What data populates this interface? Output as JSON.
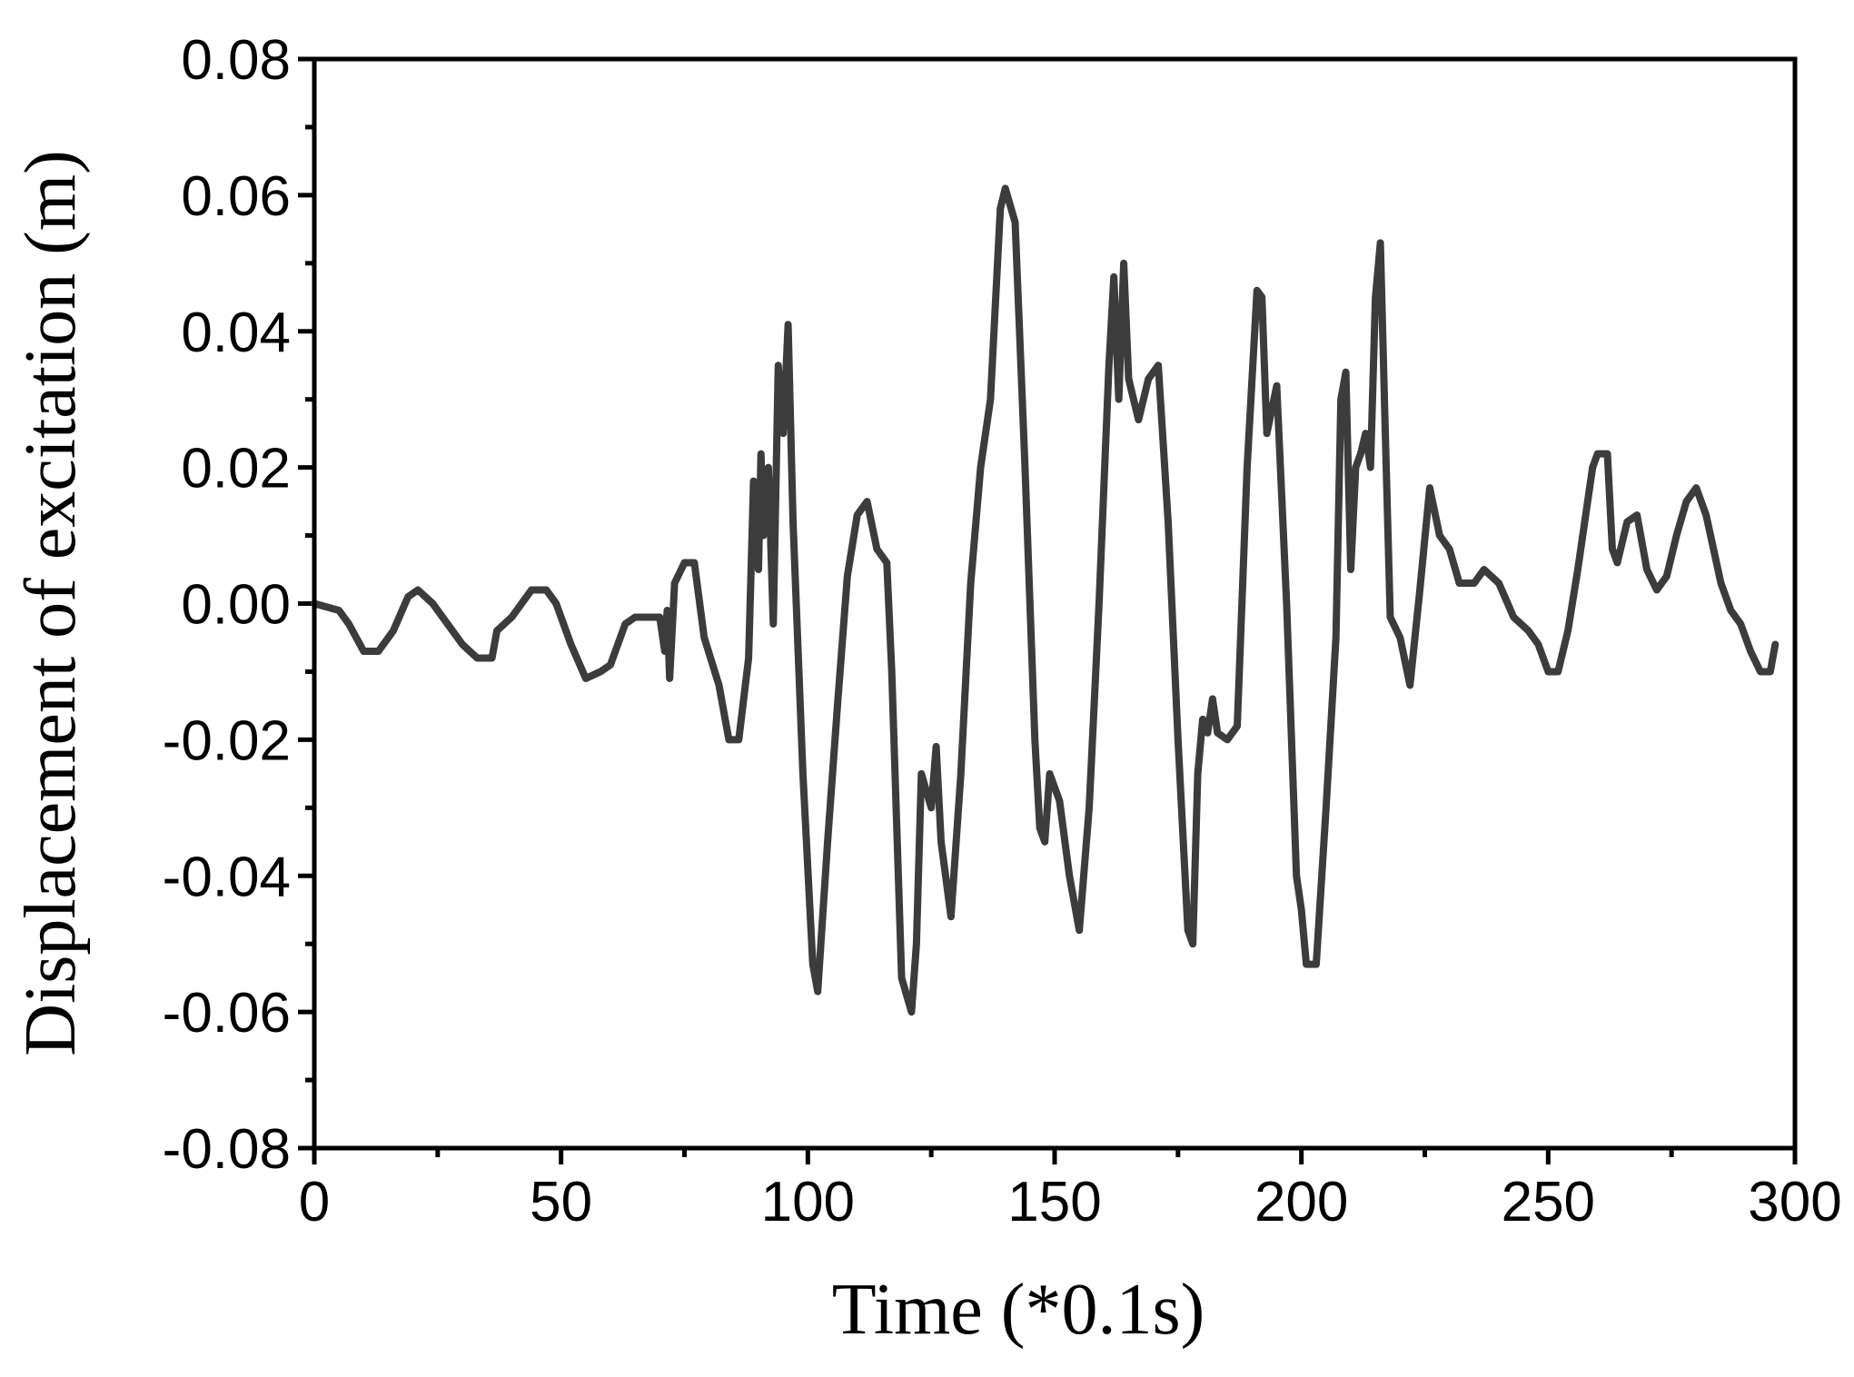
{
  "chart_data": {
    "type": "line",
    "xlabel": "Time (*0.1s)",
    "ylabel": "Displacement of excitation (m)",
    "color": "#3c3c3c",
    "xlim": [
      0,
      300
    ],
    "xticks": [
      0,
      50,
      100,
      150,
      200,
      250,
      300
    ],
    "ylim": [
      -0.08,
      0.08
    ],
    "yticks": [
      {
        "value": -0.08,
        "label": "-0.08"
      },
      {
        "value": -0.06,
        "label": "-0.06"
      },
      {
        "value": -0.04,
        "label": "-0.04"
      },
      {
        "value": -0.02,
        "label": "-0.02"
      },
      {
        "value": 0,
        "label": "0.00"
      },
      {
        "value": 0.02,
        "label": "0.02"
      },
      {
        "value": 0.04,
        "label": "0.04"
      },
      {
        "value": 0.06,
        "label": "0.06"
      },
      {
        "value": 0.08,
        "label": "0.08"
      }
    ],
    "x": [
      0,
      5,
      7,
      10,
      13,
      16,
      19,
      21,
      24,
      27,
      30,
      33,
      36,
      37,
      40,
      44,
      47,
      49,
      52,
      55,
      58,
      60,
      63,
      65,
      68,
      70,
      71,
      71.5,
      72,
      73,
      75,
      77,
      79,
      82,
      84,
      86,
      88,
      89,
      90,
      90.5,
      91,
      92,
      93,
      94,
      95,
      96,
      97,
      99,
      101,
      102,
      104,
      106,
      108,
      110,
      112,
      114,
      116,
      117,
      119,
      121,
      122,
      123,
      125,
      126,
      127,
      129,
      131,
      133,
      135,
      137,
      139,
      140,
      142,
      144,
      146,
      147,
      148,
      149,
      151,
      153,
      155,
      157,
      159,
      161,
      162,
      163,
      164,
      165,
      167,
      169,
      171,
      173,
      175,
      177,
      178,
      179,
      180,
      181,
      182,
      183,
      185,
      187,
      189,
      191,
      192,
      193,
      195,
      197,
      199,
      200,
      201,
      203,
      205,
      207,
      208,
      209,
      210,
      211,
      212,
      213,
      214,
      215,
      216,
      217,
      218,
      220,
      222,
      224,
      226,
      228,
      230,
      232,
      235,
      237,
      240,
      243,
      246,
      248,
      250,
      252,
      254,
      256,
      259,
      260,
      262,
      263,
      264,
      266,
      268,
      270,
      272,
      274,
      276,
      278,
      280,
      282,
      285,
      287,
      289,
      291,
      293,
      295,
      296
    ],
    "values": [
      0,
      -0.001,
      -0.003,
      -0.007,
      -0.007,
      -0.004,
      0.001,
      0.002,
      0,
      -0.003,
      -0.006,
      -0.008,
      -0.008,
      -0.004,
      -0.002,
      0.002,
      0.002,
      0,
      -0.006,
      -0.011,
      -0.01,
      -0.009,
      -0.003,
      -0.002,
      -0.002,
      -0.002,
      -0.007,
      -0.001,
      -0.011,
      0.003,
      0.006,
      0.006,
      -0.005,
      -0.012,
      -0.02,
      -0.02,
      -0.008,
      0.018,
      0.005,
      0.022,
      0.01,
      0.02,
      -0.003,
      0.035,
      0.025,
      0.041,
      0.012,
      -0.025,
      -0.053,
      -0.057,
      -0.035,
      -0.015,
      0.004,
      0.013,
      0.015,
      0.008,
      0.006,
      -0.01,
      -0.055,
      -0.06,
      -0.05,
      -0.025,
      -0.03,
      -0.021,
      -0.035,
      -0.046,
      -0.025,
      0.003,
      0.02,
      0.03,
      0.058,
      0.061,
      0.056,
      0.02,
      -0.02,
      -0.033,
      -0.035,
      -0.025,
      -0.029,
      -0.04,
      -0.048,
      -0.03,
      0,
      0.035,
      0.048,
      0.03,
      0.05,
      0.033,
      0.027,
      0.033,
      0.035,
      0.012,
      -0.02,
      -0.048,
      -0.05,
      -0.025,
      -0.017,
      -0.019,
      -0.014,
      -0.019,
      -0.02,
      -0.018,
      0.02,
      0.046,
      0.045,
      0.025,
      0.032,
      0,
      -0.04,
      -0.045,
      -0.053,
      -0.053,
      -0.03,
      -0.005,
      0.03,
      0.034,
      0.005,
      0.02,
      0.022,
      0.025,
      0.02,
      0.045,
      0.053,
      0.025,
      -0.002,
      -0.005,
      -0.012,
      0.002,
      0.017,
      0.01,
      0.008,
      0.003,
      0.003,
      0.005,
      0.003,
      -0.002,
      -0.004,
      -0.006,
      -0.01,
      -0.01,
      -0.004,
      0.005,
      0.02,
      0.022,
      0.022,
      0.008,
      0.006,
      0.012,
      0.013,
      0.005,
      0.002,
      0.004,
      0.01,
      0.015,
      0.017,
      0.013,
      0.003,
      -0.001,
      -0.003,
      -0.007,
      -0.01,
      -0.01,
      -0.006
    ]
  }
}
